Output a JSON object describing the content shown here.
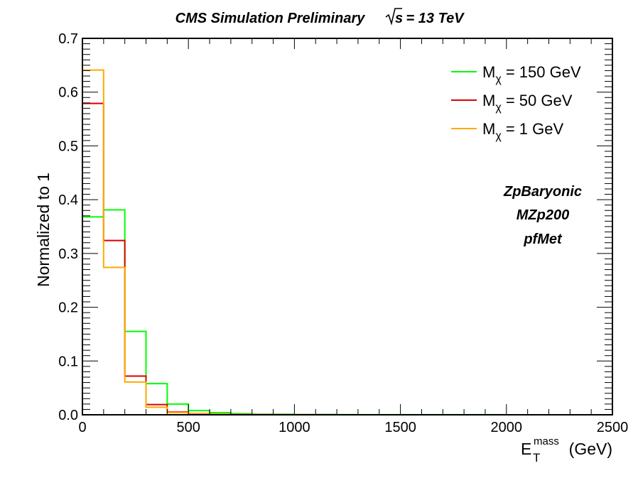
{
  "chart_data": {
    "type": "step-histogram",
    "title": {
      "main": "CMS Simulation Preliminary",
      "energy_prefix": "s",
      "energy_suffix": " = 13 TeV"
    },
    "xlabel": {
      "symbol": "E",
      "sub": "T",
      "sup": "mass",
      "unit": "(GeV)"
    },
    "ylabel": "Normalized to 1",
    "xlim": [
      0,
      2500
    ],
    "ylim": [
      0,
      0.7
    ],
    "xticks": [
      0,
      500,
      1000,
      1500,
      2000,
      2500
    ],
    "xtick_labels": [
      "0",
      "500",
      "1000",
      "1500",
      "2000",
      "2500"
    ],
    "yticks": [
      0,
      0.1,
      0.2,
      0.3,
      0.4,
      0.5,
      0.6,
      0.7
    ],
    "ytick_labels": [
      "0.0",
      "0.1",
      "0.2",
      "0.3",
      "0.4",
      "0.5",
      "0.6",
      "0.7"
    ],
    "bin_width": 100,
    "bin_edges": [
      0,
      100,
      200,
      300,
      400,
      500,
      600,
      700,
      800,
      900,
      1000,
      1100,
      1200,
      1300,
      1400,
      1500,
      1600,
      1700,
      1800,
      1900,
      2000,
      2100,
      2200,
      2300,
      2400,
      2500
    ],
    "series": [
      {
        "name_main": "M",
        "name_sub": "χ",
        "name_rest": " = 150 GeV",
        "color": "#00ff00",
        "values": [
          0.368,
          0.381,
          0.155,
          0.058,
          0.02,
          0.008,
          0.004,
          0.002,
          0.001,
          0.001,
          0.0005,
          0.0005,
          0.0003,
          0.0002,
          0.0002,
          0.0001,
          0.0001,
          0.0001,
          0.0001,
          0.0001,
          0,
          0,
          0,
          0,
          0
        ]
      },
      {
        "name_main": "M",
        "name_sub": "χ",
        "name_rest": " = 50 GeV",
        "color": "#dd0000",
        "values": [
          0.579,
          0.324,
          0.072,
          0.019,
          0.005,
          0.002,
          0.001,
          0.0005,
          0.0003,
          0.0002,
          0.0001,
          0.0001,
          0,
          0,
          0,
          0,
          0,
          0,
          0,
          0,
          0,
          0,
          0,
          0,
          0
        ]
      },
      {
        "name_main": "M",
        "name_sub": "χ",
        "name_rest": " = 1 GeV",
        "color": "#ffaa00",
        "values": [
          0.641,
          0.274,
          0.061,
          0.014,
          0.004,
          0.0015,
          0.0008,
          0.0004,
          0.0002,
          0.0001,
          0.0001,
          0,
          0,
          0,
          0,
          0,
          0,
          0,
          0,
          0,
          0,
          0,
          0,
          0,
          0
        ]
      }
    ],
    "legend_position": "top-right",
    "annotations": [
      "ZpBaryonic",
      "MZp200",
      "pfMet"
    ],
    "grid": false
  }
}
